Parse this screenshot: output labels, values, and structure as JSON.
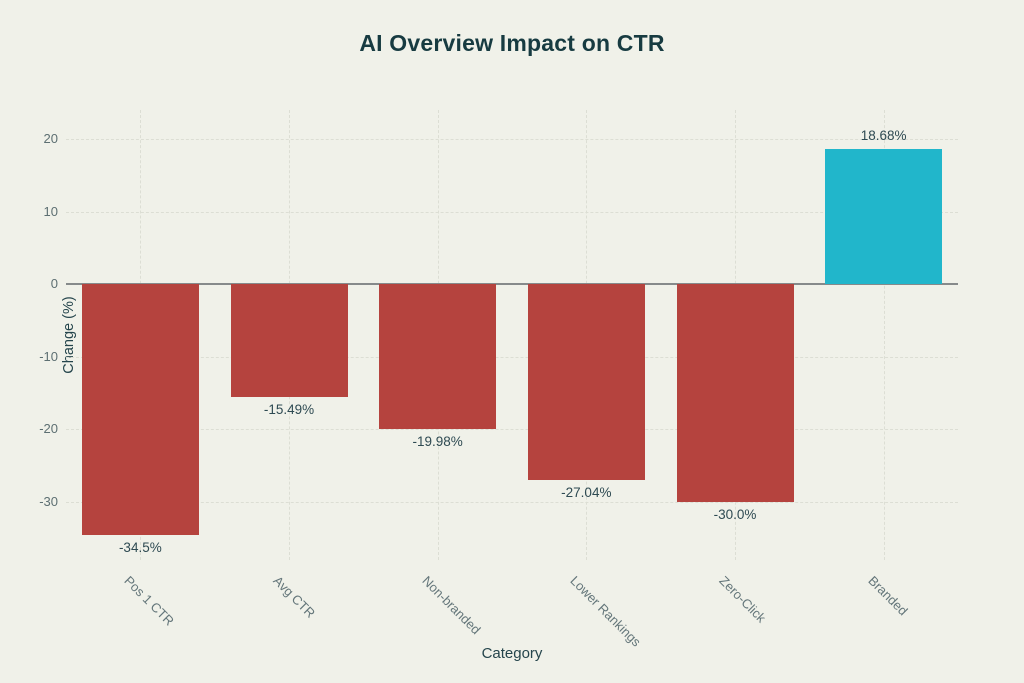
{
  "title": "AI Overview Impact on CTR",
  "chart_data": {
    "type": "bar",
    "title": "AI Overview Impact on CTR",
    "xlabel": "Category",
    "ylabel": "Change (%)",
    "categories": [
      "Pos 1 CTR",
      "Avg CTR",
      "Non-branded",
      "Lower Rankings",
      "Zero-Click",
      "Branded"
    ],
    "values": [
      -34.5,
      -15.49,
      -19.98,
      -27.04,
      -30.0,
      18.68
    ],
    "value_labels": [
      "-34.5%",
      "-15.49%",
      "-19.98%",
      "-27.04%",
      "-30.0%",
      "18.68%"
    ],
    "yticks": [
      20,
      10,
      0,
      -10,
      -20,
      -30
    ],
    "ylim": [
      -38,
      24
    ],
    "grid": true,
    "legend": "none",
    "colors": {
      "negative_bar": "#b5433e",
      "positive_bar": "#21b6cb",
      "background": "#f0f1e9",
      "grid": "#dcded4",
      "zero_line": "#868a8b",
      "title_text": "#173b41",
      "axis_label_text": "#25454c",
      "tick_text": "#5d6f72",
      "value_label_text": "#2e4a52"
    }
  }
}
